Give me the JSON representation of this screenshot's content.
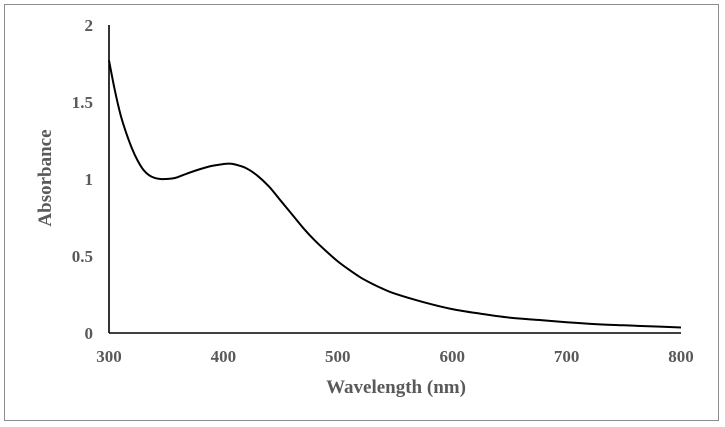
{
  "chart_data": {
    "type": "line",
    "title": "",
    "xlabel": "Wavelength (nm)",
    "ylabel": "Absorbance",
    "xlim": [
      300,
      800
    ],
    "ylim": [
      0,
      2
    ],
    "xticks": [
      300,
      400,
      500,
      600,
      700,
      800
    ],
    "yticks": [
      0,
      0.5,
      1,
      1.5,
      2
    ],
    "xtick_labels": [
      "300",
      "400",
      "500",
      "600",
      "700",
      "800"
    ],
    "ytick_labels": [
      "0",
      "0.5",
      "1",
      "1.5",
      "2"
    ],
    "grid": false,
    "legend": "none",
    "line_color": "#000000",
    "axis_color": "#000000",
    "text_color": "#595959",
    "series": [
      {
        "x": [
          300,
          305,
          310,
          315,
          320,
          325,
          330,
          335,
          340,
          345,
          350,
          355,
          360,
          370,
          380,
          390,
          400,
          405,
          410,
          420,
          430,
          440,
          450,
          460,
          470,
          480,
          490,
          500,
          510,
          520,
          530,
          540,
          550,
          575,
          600,
          625,
          650,
          675,
          700,
          725,
          750,
          775,
          800
        ],
        "y": [
          1.77,
          1.58,
          1.42,
          1.3,
          1.2,
          1.12,
          1.06,
          1.025,
          1.007,
          1.0,
          1.0,
          1.003,
          1.012,
          1.04,
          1.065,
          1.085,
          1.097,
          1.1,
          1.095,
          1.07,
          1.02,
          0.95,
          0.86,
          0.77,
          0.68,
          0.6,
          0.53,
          0.465,
          0.41,
          0.36,
          0.32,
          0.285,
          0.255,
          0.2,
          0.155,
          0.125,
          0.1,
          0.085,
          0.07,
          0.058,
          0.05,
          0.043,
          0.036
        ]
      }
    ]
  }
}
